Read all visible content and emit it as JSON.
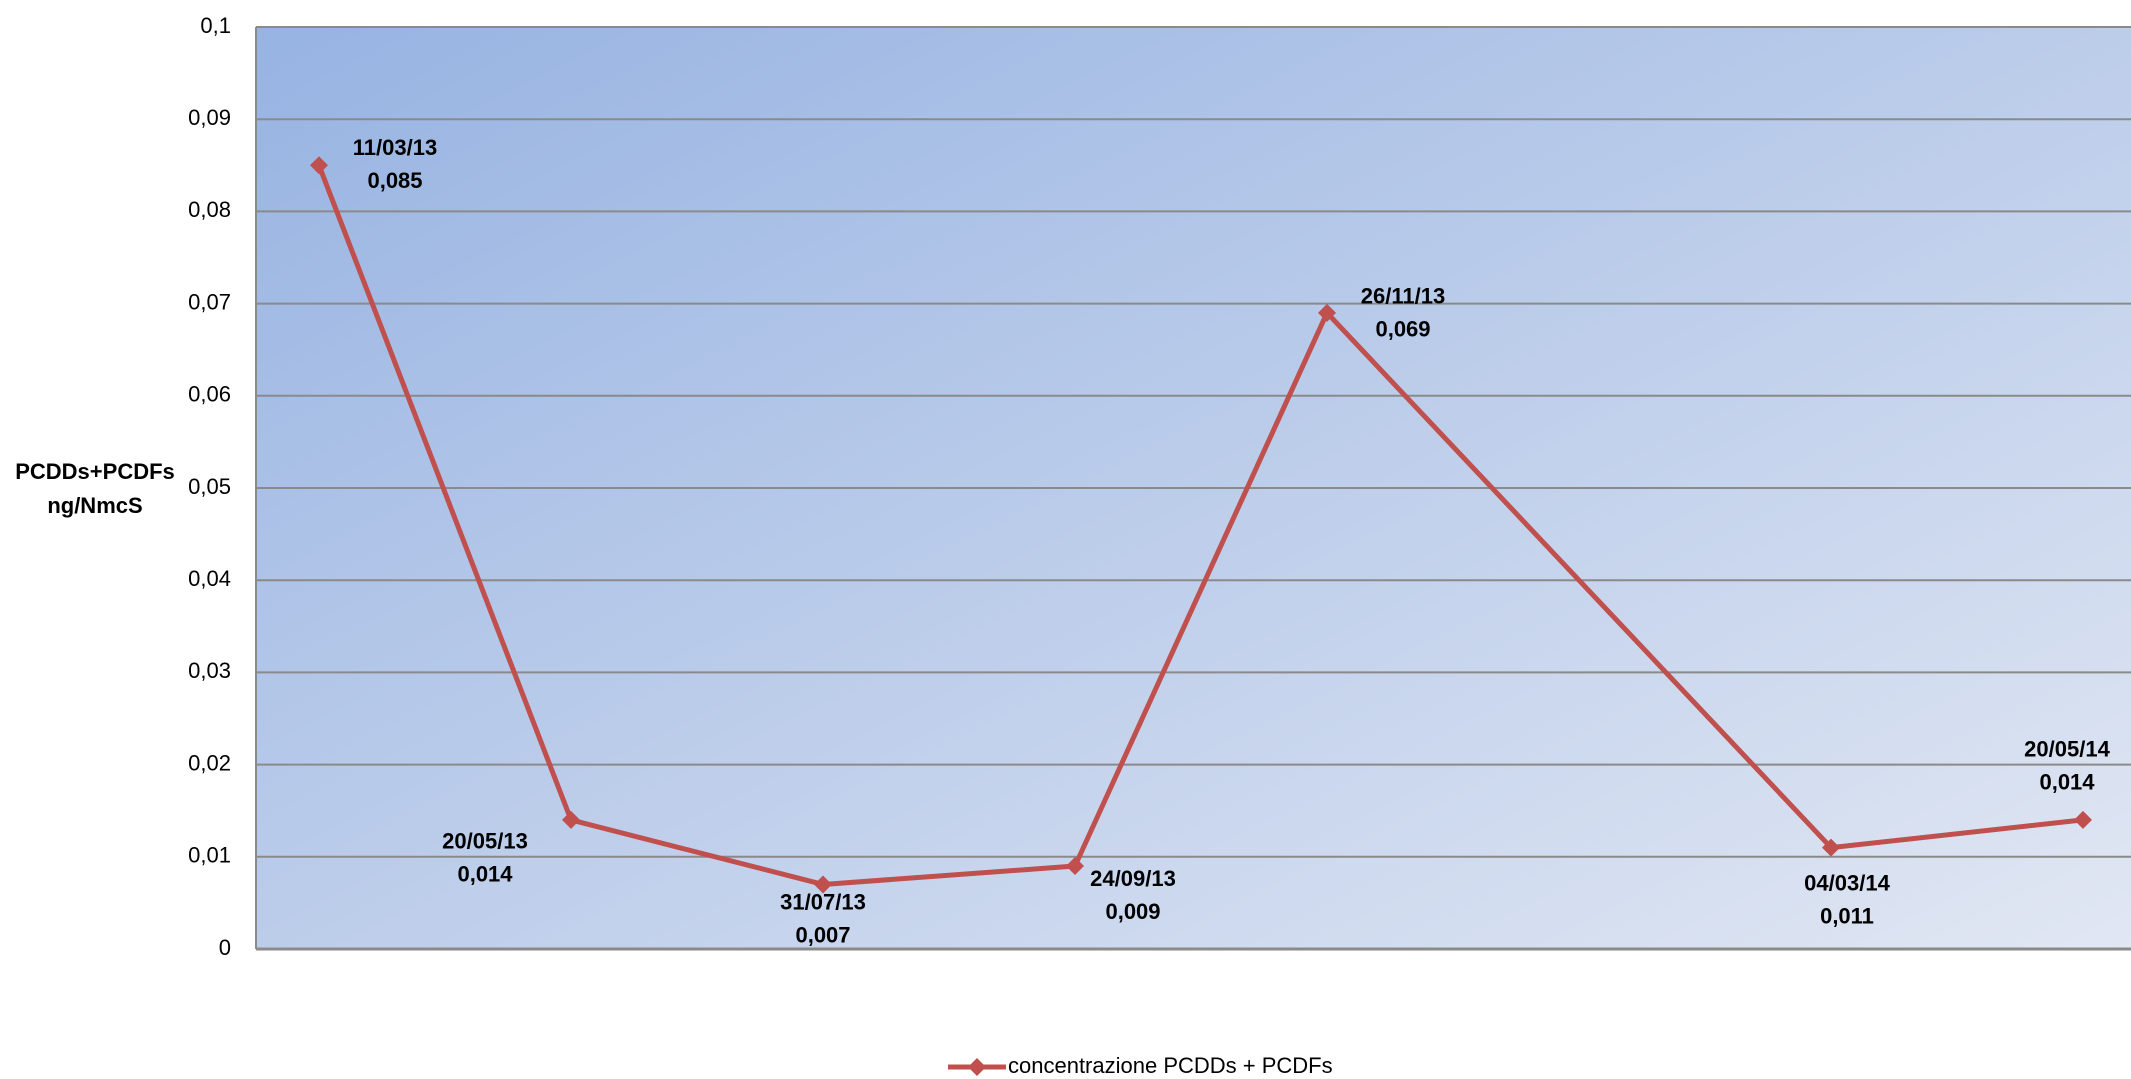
{
  "chart_data": {
    "type": "line",
    "y_label": [
      "PCDDs+PCDFs",
      "ng/NmcS"
    ],
    "categories": [
      "11/03/13",
      "20/05/13",
      "31/07/13",
      "24/09/13",
      "26/11/13",
      null,
      "04/03/14",
      "20/05/14"
    ],
    "series": [
      {
        "name": "concentrazione PCDDs + PCDFs",
        "color": "#c0504d",
        "values": [
          0.085,
          0.014,
          0.007,
          0.009,
          0.069,
          null,
          0.011,
          0.014
        ],
        "value_labels": [
          "0,085",
          "0,014",
          "0,007",
          "0,009",
          "0,069",
          null,
          "0,011",
          "0,014"
        ]
      }
    ],
    "ylim": [
      0,
      0.1
    ],
    "yticks": [
      0,
      {
        "value": 0.01,
        "label": "0,01"
      },
      {
        "value": 0.02,
        "label": "0,02"
      },
      {
        "value": 0.03,
        "label": "0,03"
      },
      {
        "value": 0.04,
        "label": "0,04"
      },
      {
        "value": 0.05,
        "label": "0,05"
      },
      {
        "value": 0.06,
        "label": "0,06"
      },
      {
        "value": 0.07,
        "label": "0,07"
      },
      {
        "value": 0.08,
        "label": "0,08"
      },
      {
        "value": 0.09,
        "label": "0,09"
      },
      {
        "value": 0.1,
        "label": "0,1"
      }
    ],
    "grid": true,
    "legend": "bottom"
  }
}
